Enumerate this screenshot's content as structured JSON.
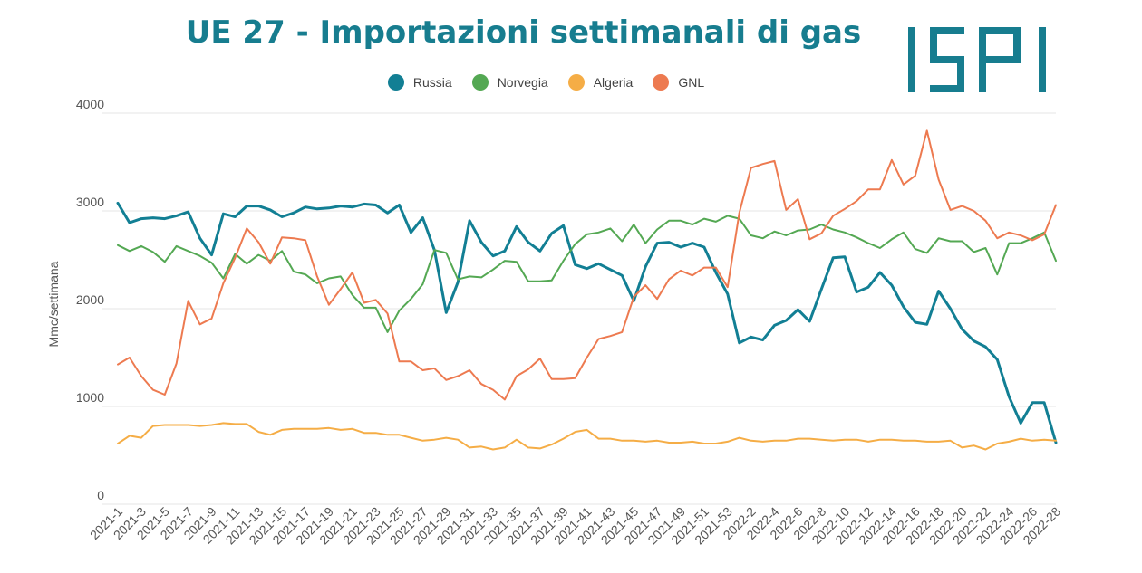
{
  "title": "UE 27 - Importazioni settimanali di gas",
  "logo_text": "ISPI",
  "colors": {
    "title": "#177d8f",
    "russia": "#127f94",
    "norvegia": "#54a853",
    "algeria": "#f5ad46",
    "gnl": "#ed7a50",
    "grid": "#e6e6e6",
    "axis_text": "#555555"
  },
  "chart_data": {
    "type": "line",
    "title": "UE 27 - Importazioni settimanali di gas",
    "ylabel": "Mmc/settimana",
    "xlabel": "",
    "ylim": [
      0,
      4000
    ],
    "yticks": [
      0,
      1000,
      2000,
      3000,
      4000
    ],
    "grid": true,
    "legend_position": "top-center",
    "x": [
      "2021-1",
      "2021-2",
      "2021-3",
      "2021-4",
      "2021-5",
      "2021-6",
      "2021-7",
      "2021-8",
      "2021-9",
      "2021-10",
      "2021-11",
      "2021-12",
      "2021-13",
      "2021-14",
      "2021-15",
      "2021-16",
      "2021-17",
      "2021-18",
      "2021-19",
      "2021-20",
      "2021-21",
      "2021-22",
      "2021-23",
      "2021-24",
      "2021-25",
      "2021-26",
      "2021-27",
      "2021-28",
      "2021-29",
      "2021-30",
      "2021-31",
      "2021-32",
      "2021-33",
      "2021-34",
      "2021-35",
      "2021-36",
      "2021-37",
      "2021-38",
      "2021-39",
      "2021-40",
      "2021-41",
      "2021-42",
      "2021-43",
      "2021-44",
      "2021-45",
      "2021-46",
      "2021-47",
      "2021-48",
      "2021-49",
      "2021-50",
      "2021-51",
      "2021-52",
      "2021-53",
      "2022-1",
      "2022-2",
      "2022-3",
      "2022-4",
      "2022-5",
      "2022-6",
      "2022-7",
      "2022-8",
      "2022-9",
      "2022-10",
      "2022-11",
      "2022-12",
      "2022-13",
      "2022-14",
      "2022-15",
      "2022-16",
      "2022-17",
      "2022-18",
      "2022-19",
      "2022-20",
      "2022-21",
      "2022-22",
      "2022-23",
      "2022-24",
      "2022-25",
      "2022-26",
      "2022-27",
      "2022-28"
    ],
    "xtick_labels": [
      "2021-1",
      "2021-3",
      "2021-5",
      "2021-7",
      "2021-9",
      "2021-11",
      "2021-13",
      "2021-15",
      "2021-17",
      "2021-19",
      "2021-21",
      "2021-23",
      "2021-25",
      "2021-27",
      "2021-29",
      "2021-31",
      "2021-33",
      "2021-35",
      "2021-37",
      "2021-39",
      "2021-41",
      "2021-43",
      "2021-45",
      "2021-47",
      "2021-49",
      "2021-51",
      "2021-53",
      "2022-2",
      "2022-4",
      "2022-6",
      "2022-8",
      "2022-10",
      "2022-12",
      "2022-14",
      "2022-16",
      "2022-18",
      "2022-20",
      "2022-22",
      "2022-24",
      "2022-26",
      "2022-28"
    ],
    "series": [
      {
        "name": "Russia",
        "color": "#127f94",
        "width": 3,
        "values": [
          3080,
          2880,
          2920,
          2930,
          2920,
          2950,
          2990,
          2720,
          2550,
          2970,
          2940,
          3050,
          3050,
          3010,
          2940,
          2980,
          3040,
          3020,
          3030,
          3050,
          3040,
          3070,
          3060,
          2980,
          3060,
          2780,
          2930,
          2600,
          1960,
          2270,
          2900,
          2680,
          2540,
          2590,
          2840,
          2680,
          2590,
          2770,
          2850,
          2450,
          2410,
          2460,
          2400,
          2340,
          2080,
          2430,
          2670,
          2680,
          2630,
          2670,
          2630,
          2370,
          2150,
          1650,
          1710,
          1680,
          1830,
          1880,
          1990,
          1870,
          2200,
          2520,
          2530,
          2170,
          2220,
          2370,
          2240,
          2020,
          1860,
          1840,
          2180,
          2000,
          1790,
          1670,
          1610,
          1480,
          1100,
          830,
          1040,
          1040,
          630
        ]
      },
      {
        "name": "Norvegia",
        "color": "#54a853",
        "width": 2,
        "values": [
          2650,
          2590,
          2640,
          2580,
          2480,
          2640,
          2590,
          2540,
          2470,
          2310,
          2560,
          2460,
          2550,
          2490,
          2590,
          2380,
          2350,
          2260,
          2310,
          2330,
          2140,
          2010,
          2010,
          1760,
          1980,
          2100,
          2250,
          2600,
          2570,
          2300,
          2330,
          2320,
          2400,
          2490,
          2480,
          2280,
          2280,
          2290,
          2490,
          2660,
          2760,
          2780,
          2820,
          2690,
          2860,
          2670,
          2810,
          2900,
          2900,
          2860,
          2920,
          2890,
          2950,
          2920,
          2750,
          2720,
          2790,
          2750,
          2800,
          2810,
          2860,
          2810,
          2780,
          2730,
          2670,
          2620,
          2710,
          2780,
          2610,
          2570,
          2720,
          2690,
          2690,
          2580,
          2620,
          2350,
          2670,
          2670,
          2720,
          2780,
          2490
        ]
      },
      {
        "name": "Algeria",
        "color": "#f5ad46",
        "width": 2,
        "values": [
          620,
          700,
          680,
          800,
          810,
          810,
          810,
          800,
          810,
          830,
          820,
          820,
          740,
          710,
          760,
          770,
          770,
          770,
          780,
          760,
          770,
          730,
          730,
          710,
          710,
          680,
          650,
          660,
          680,
          660,
          580,
          590,
          560,
          580,
          660,
          580,
          570,
          610,
          670,
          740,
          760,
          670,
          670,
          650,
          650,
          640,
          650,
          630,
          630,
          640,
          620,
          620,
          640,
          680,
          650,
          640,
          650,
          650,
          670,
          670,
          660,
          650,
          660,
          660,
          640,
          660,
          660,
          650,
          650,
          640,
          640,
          650,
          580,
          600,
          560,
          620,
          640,
          670,
          650,
          660,
          650
        ]
      },
      {
        "name": "GNL",
        "color": "#ed7a50",
        "width": 2,
        "values": [
          1430,
          1500,
          1310,
          1170,
          1120,
          1440,
          2080,
          1840,
          1900,
          2260,
          2520,
          2820,
          2680,
          2460,
          2730,
          2720,
          2700,
          2330,
          2040,
          2200,
          2370,
          2060,
          2090,
          1950,
          1460,
          1460,
          1370,
          1390,
          1270,
          1310,
          1370,
          1230,
          1170,
          1070,
          1310,
          1380,
          1490,
          1280,
          1280,
          1290,
          1500,
          1690,
          1720,
          1760,
          2120,
          2240,
          2100,
          2300,
          2390,
          2340,
          2420,
          2420,
          2220,
          2980,
          3440,
          3480,
          3510,
          3010,
          3120,
          2710,
          2770,
          2950,
          3020,
          3100,
          3220,
          3220,
          3520,
          3270,
          3360,
          3820,
          3320,
          3010,
          3050,
          3000,
          2900,
          2720,
          2780,
          2750,
          2700,
          2760,
          3060
        ]
      }
    ]
  }
}
